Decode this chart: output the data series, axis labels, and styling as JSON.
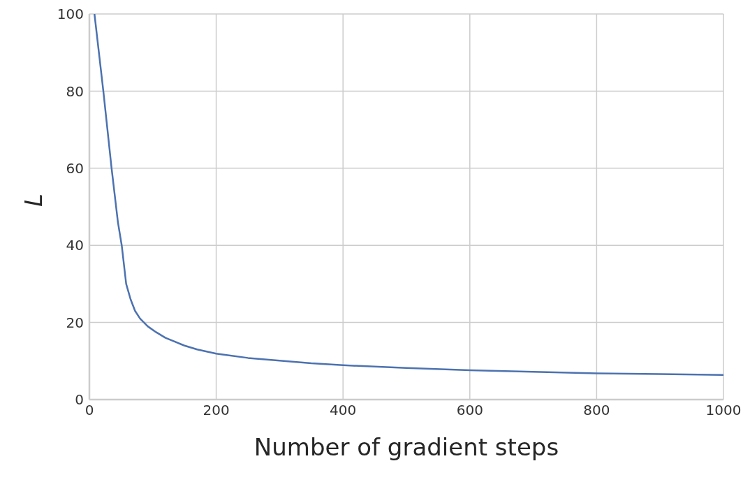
{
  "chart_data": {
    "type": "line",
    "xlabel": "Number of gradient steps",
    "ylabel": "L",
    "x": [
      8,
      15,
      22,
      35,
      45,
      51,
      58,
      65,
      72,
      80,
      92,
      105,
      120,
      150,
      170,
      200,
      250,
      300,
      350,
      400,
      500,
      600,
      700,
      800,
      900,
      1000
    ],
    "series": [
      {
        "color": "#4c72b0",
        "values": [
          100,
          90,
          80,
          60,
          46,
          40,
          30,
          26,
          23,
          21,
          19,
          17.5,
          16,
          14,
          13,
          11.9,
          10.8,
          10.1,
          9.4,
          8.9,
          8.2,
          7.6,
          7.2,
          6.8,
          6.6,
          6.4
        ]
      }
    ],
    "xlim": [
      0,
      1000
    ],
    "xticks": [
      0,
      200,
      400,
      600,
      800,
      1000
    ],
    "ylim": [
      0,
      100
    ],
    "yticks": [
      0,
      20,
      40,
      60,
      80,
      100
    ],
    "grid": true,
    "legend": false,
    "marker": "none",
    "line_style": "solid"
  }
}
